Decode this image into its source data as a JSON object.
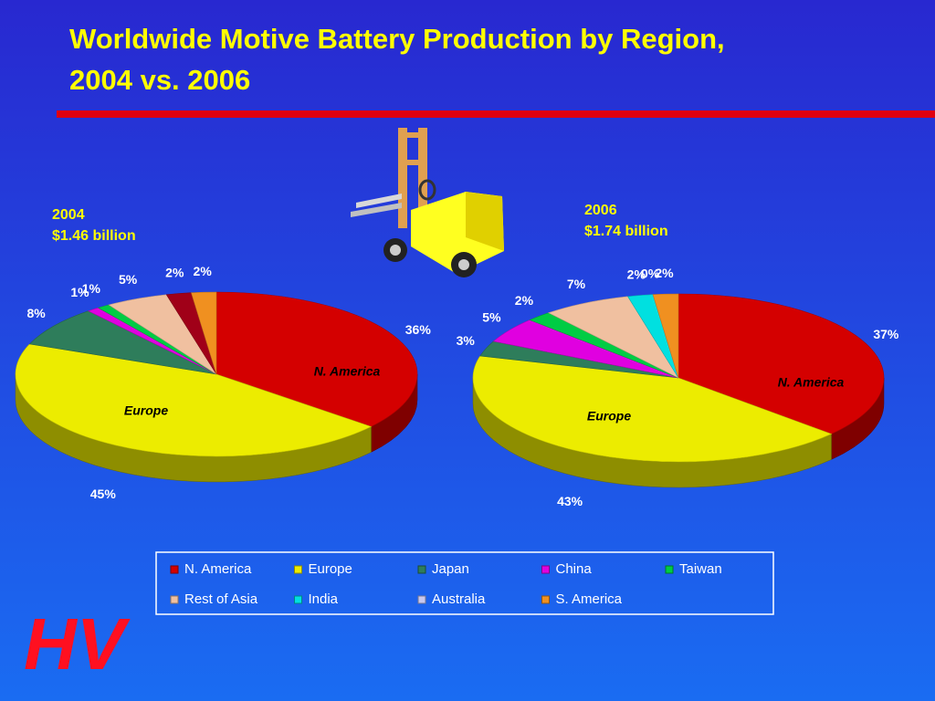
{
  "title": [
    "Worldwide Motive Battery Production by Region,",
    "2004 vs. 2006"
  ],
  "logo": "HV",
  "legend": [
    {
      "name": "N. America",
      "color": "#d40000"
    },
    {
      "name": "Europe",
      "color": "#ecec00"
    },
    {
      "name": "Japan",
      "color": "#2e7d5b"
    },
    {
      "name": "China",
      "color": "#e000e0"
    },
    {
      "name": "Taiwan",
      "color": "#00cc44"
    },
    {
      "name": "Rest of Asia",
      "color": "#f0c0a0"
    },
    {
      "name": "India",
      "color": "#00e0e0"
    },
    {
      "name": "Australia",
      "color": "#c8c8f0"
    },
    {
      "name": "S. America",
      "color": "#f09020"
    }
  ],
  "chart_data": [
    {
      "type": "pie",
      "title": "2004",
      "subtitle": "$1.46 billion",
      "categories": [
        "N. America",
        "Europe",
        "Japan",
        "China",
        "Taiwan",
        "Rest of Asia",
        "India",
        "S. America"
      ],
      "values": [
        36,
        45,
        8,
        1,
        1,
        5,
        2,
        2
      ],
      "value_labels": [
        "36%",
        "45%",
        "8%",
        "1%",
        "1%",
        "5%",
        "2%",
        "2%"
      ],
      "colors": [
        "#d40000",
        "#ecec00",
        "#2e7d5b",
        "#e000e0",
        "#00cc44",
        "#f0c0a0",
        "#a00018",
        "#f09020"
      ]
    },
    {
      "type": "pie",
      "title": "2006",
      "subtitle": "$1.74 billion",
      "categories": [
        "N. America",
        "Europe",
        "Japan",
        "China",
        "Taiwan",
        "Rest of Asia",
        "India",
        "Australia",
        "S. America"
      ],
      "values": [
        37,
        43,
        3,
        5,
        2,
        7,
        2,
        0,
        2
      ],
      "value_labels": [
        "37%",
        "43%",
        "3%",
        "5%",
        "2%",
        "7%",
        "2%",
        "0%",
        "2%"
      ],
      "colors": [
        "#d40000",
        "#ecec00",
        "#2e7d5b",
        "#e000e0",
        "#00cc44",
        "#f0c0a0",
        "#00e0e0",
        "#c8c8f0",
        "#f09020"
      ]
    }
  ]
}
